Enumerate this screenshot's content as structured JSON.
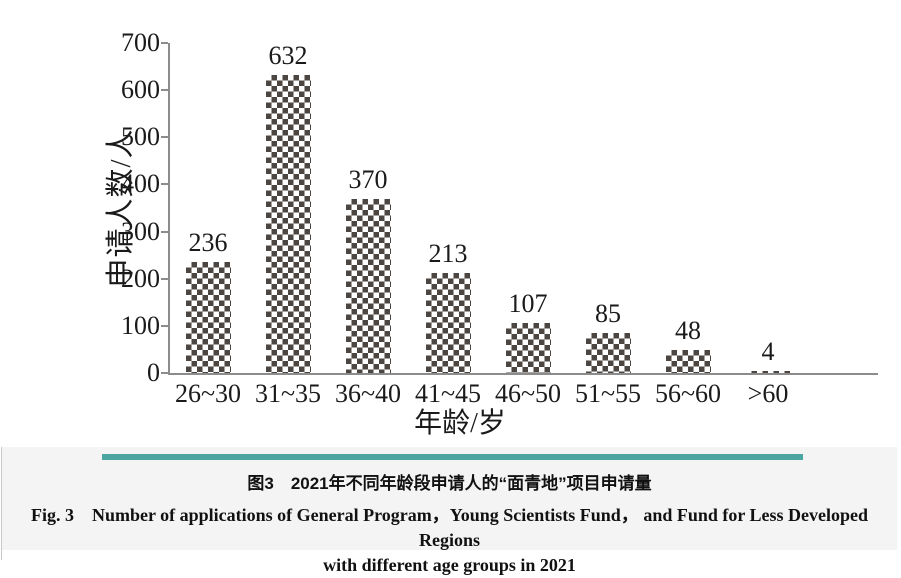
{
  "chart_data": {
    "type": "bar",
    "categories": [
      "26~30",
      "31~35",
      "36~40",
      "41~45",
      "46~50",
      "51~55",
      "56~60",
      ">60"
    ],
    "values": [
      236,
      632,
      370,
      213,
      107,
      85,
      48,
      4
    ],
    "title": "",
    "xlabel": "年龄/岁",
    "ylabel": "申请人数/人",
    "ylim": [
      0,
      700
    ],
    "yticks": [
      0,
      100,
      200,
      300,
      400,
      500,
      600,
      700
    ],
    "grid": false,
    "legend": null,
    "bar_fill_pattern": "checkerboard",
    "bar_pattern_color": "#4c4642",
    "axis_color": "#8c8c8c",
    "value_labels_shown": true
  },
  "captions": {
    "zh": "图3　2021年不同年龄段申请人的“面青地”项目申请量",
    "en_line1": "Fig. 3　Number of applications of General Program，Young Scientists Fund， and Fund for Less Developed Regions",
    "en_line2": "with different age groups in 2021"
  },
  "colors": {
    "teal_rule": "#4ba5a1",
    "caption_panel_bg": "#f4f4f4",
    "page_border": "#c9c9c9",
    "text": "#1a1a1a"
  }
}
